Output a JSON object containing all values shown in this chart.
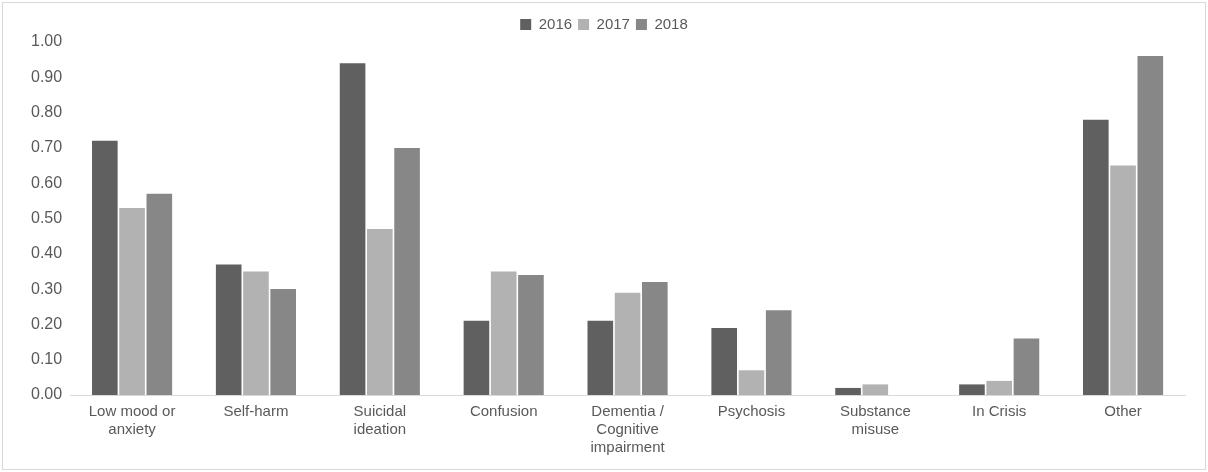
{
  "chart_data": {
    "type": "bar",
    "categories": [
      "Low mood or anxiety",
      "Self-harm",
      "Suicidal ideation",
      "Confusion",
      "Dementia / Cognitive impairment",
      "Psychosis",
      "Substance misuse",
      "In Crisis",
      "Other"
    ],
    "series": [
      {
        "name": "2016",
        "color": "#606060",
        "values": [
          0.72,
          0.37,
          0.94,
          0.21,
          0.21,
          0.19,
          0.02,
          0.03,
          0.78
        ]
      },
      {
        "name": "2017",
        "color": "#b2b2b2",
        "values": [
          0.53,
          0.35,
          0.47,
          0.35,
          0.29,
          0.07,
          0.03,
          0.04,
          0.65
        ]
      },
      {
        "name": "2018",
        "color": "#878787",
        "values": [
          0.57,
          0.3,
          0.7,
          0.34,
          0.32,
          0.24,
          0,
          0.16,
          0.96
        ]
      }
    ],
    "ylim": [
      0,
      1
    ],
    "yticks": [
      {
        "value": 0,
        "label": "0.00"
      },
      {
        "value": 0.1,
        "label": "0.10"
      },
      {
        "value": 0.2,
        "label": "0.20"
      },
      {
        "value": 0.3,
        "label": "0.30"
      },
      {
        "value": 0.4,
        "label": "0.40"
      },
      {
        "value": 0.5,
        "label": "0.50"
      },
      {
        "value": 0.6,
        "label": "0.60"
      },
      {
        "value": 0.7,
        "label": "0.70"
      },
      {
        "value": 0.8,
        "label": "0.80"
      },
      {
        "value": 0.9,
        "label": "0.90"
      },
      {
        "value": 1,
        "label": "1.00"
      }
    ],
    "grid": false,
    "legend": "top"
  }
}
